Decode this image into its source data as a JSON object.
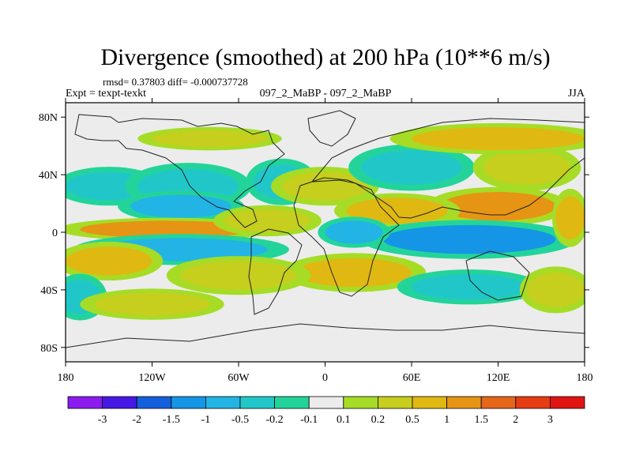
{
  "chart_data": {
    "type": "heatmap",
    "title": "Divergence (smoothed) at 200 hPa (10**6 m/s)",
    "stats_text": "rmsd= 0.37803 diff= -0.000737728",
    "experiment_label": "Expt = texpt-texkt",
    "case_label": "097_2_MaBP - 097_2_MaBP",
    "season": "JJA",
    "xlim": [
      -180,
      180
    ],
    "ylim": [
      -90,
      90
    ],
    "x_ticks": [
      "180",
      "120W",
      "60W",
      "0",
      "60E",
      "120E",
      "180"
    ],
    "y_ticks": [
      "80N",
      "40N",
      "0",
      "40S",
      "80S"
    ],
    "colorbar_labels": [
      "-3",
      "-2",
      "-1.5",
      "-1",
      "-0.5",
      "-0.2",
      "-0.1",
      "0.1",
      "0.2",
      "0.5",
      "1",
      "1.5",
      "2",
      "3"
    ],
    "colorbar_colors": [
      "#8b1cf0",
      "#4618e6",
      "#1460dc",
      "#1495e6",
      "#22b4e4",
      "#21c7c8",
      "#23d49a",
      "#ececec",
      "#a6dc26",
      "#c6ce1e",
      "#e0b812",
      "#e69414",
      "#e6661a",
      "#e63c14",
      "#e11414"
    ],
    "regions": [
      {
        "level": -0.3,
        "lon": -150,
        "lat": 32,
        "rx": 30,
        "ry": 10
      },
      {
        "level": -0.3,
        "lon": -95,
        "lat": 32,
        "rx": 35,
        "ry": 12
      },
      {
        "level": -0.8,
        "lon": -100,
        "lat": 18,
        "rx": 35,
        "ry": 8
      },
      {
        "level": -0.4,
        "lon": -30,
        "lat": 35,
        "rx": 20,
        "ry": 12
      },
      {
        "level": 0.4,
        "lon": 0,
        "lat": 32,
        "rx": 30,
        "ry": 10
      },
      {
        "level": -0.4,
        "lon": 60,
        "lat": 45,
        "rx": 35,
        "ry": 12
      },
      {
        "level": 0.4,
        "lon": 140,
        "lat": 45,
        "rx": 30,
        "ry": 12
      },
      {
        "level": 0.5,
        "lon": 120,
        "lat": 65,
        "rx": 60,
        "ry": 8
      },
      {
        "level": 0.3,
        "lon": -80,
        "lat": 65,
        "rx": 40,
        "ry": 6
      },
      {
        "level": 1.2,
        "lon": 120,
        "lat": 18,
        "rx": 40,
        "ry": 10
      },
      {
        "level": 0.8,
        "lon": 50,
        "lat": 15,
        "rx": 35,
        "ry": 9
      },
      {
        "level": 1.2,
        "lon": -110,
        "lat": 2,
        "rx": 60,
        "ry": 6
      },
      {
        "level": 0.3,
        "lon": -40,
        "lat": 8,
        "rx": 30,
        "ry": 8
      },
      {
        "level": -1.2,
        "lon": 100,
        "lat": -5,
        "rx": 60,
        "ry": 10
      },
      {
        "level": -0.8,
        "lon": 20,
        "lat": 0,
        "rx": 20,
        "ry": 8
      },
      {
        "level": -0.6,
        "lon": -100,
        "lat": -12,
        "rx": 60,
        "ry": 8
      },
      {
        "level": 0.8,
        "lon": 20,
        "lat": -28,
        "rx": 40,
        "ry": 10
      },
      {
        "level": 0.6,
        "lon": -150,
        "lat": -20,
        "rx": 30,
        "ry": 10
      },
      {
        "level": 0.4,
        "lon": -60,
        "lat": -30,
        "rx": 40,
        "ry": 10
      },
      {
        "level": -0.5,
        "lon": 100,
        "lat": -38,
        "rx": 40,
        "ry": 9
      },
      {
        "level": -0.4,
        "lon": -170,
        "lat": -45,
        "rx": 15,
        "ry": 12
      },
      {
        "level": 0.2,
        "lon": 160,
        "lat": -40,
        "rx": 20,
        "ry": 12
      },
      {
        "level": 0.3,
        "lon": -120,
        "lat": -50,
        "rx": 40,
        "ry": 8
      },
      {
        "level": 0.8,
        "lon": 170,
        "lat": 10,
        "rx": 10,
        "ry": 15
      }
    ]
  }
}
